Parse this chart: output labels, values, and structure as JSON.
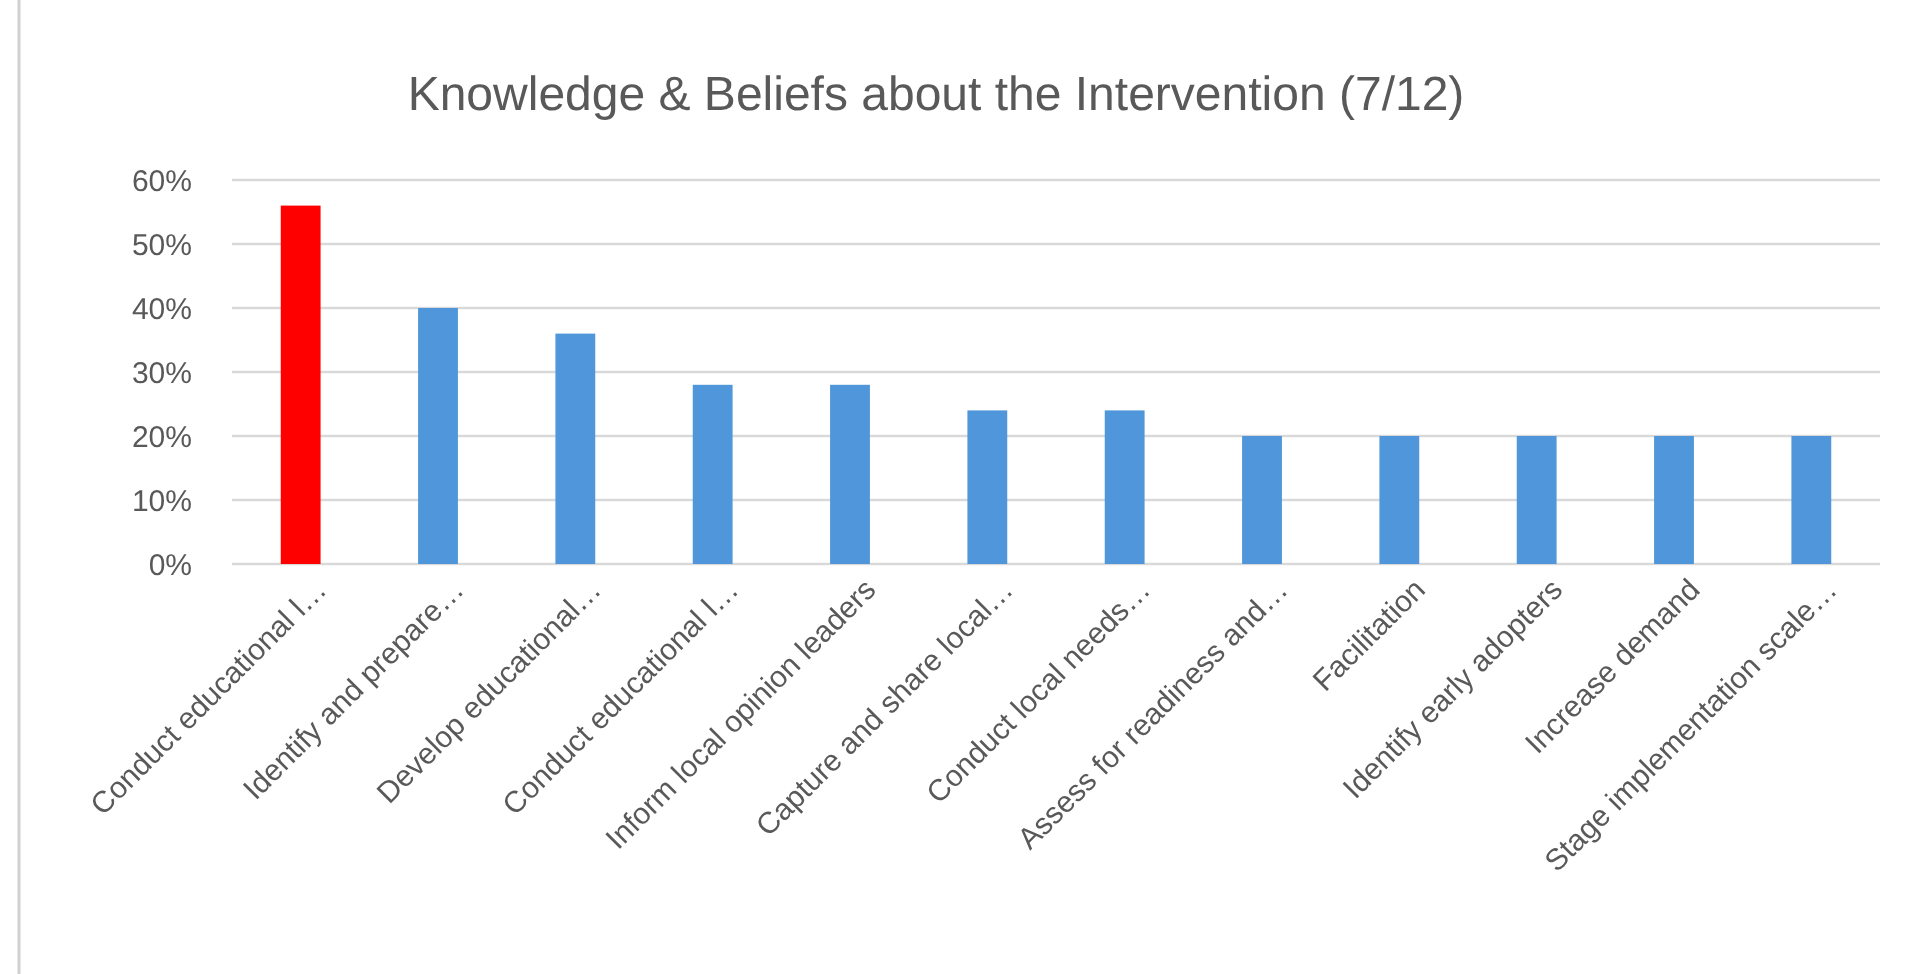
{
  "chart_data": {
    "type": "bar",
    "title": "Knowledge & Beliefs about the Intervention (7/12)",
    "categories": [
      "Conduct educational l…",
      "Identify and prepare…",
      "Develop educational…",
      "Conduct educational l…",
      "Inform local opinion leaders",
      "Capture and share local…",
      "Conduct local needs…",
      "Assess for readiness and…",
      "Facilitation",
      "Identify early adopters",
      "Increase demand",
      "Stage implementation scale…"
    ],
    "values": [
      56,
      40,
      36,
      28,
      28,
      24,
      24,
      20,
      20,
      20,
      20,
      20
    ],
    "colors": [
      "#ff0000",
      "#4f97da",
      "#4f97da",
      "#4f97da",
      "#4f97da",
      "#4f97da",
      "#4f97da",
      "#4f97da",
      "#4f97da",
      "#4f97da",
      "#4f97da",
      "#4f97da"
    ],
    "ylim": [
      0,
      60
    ],
    "yticks": [
      {
        "value": 0,
        "label": "0%"
      },
      {
        "value": 10,
        "label": "10%"
      },
      {
        "value": 20,
        "label": "20%"
      },
      {
        "value": 30,
        "label": "30%"
      },
      {
        "value": 40,
        "label": "40%"
      },
      {
        "value": 50,
        "label": "50%"
      },
      {
        "value": 60,
        "label": "60%"
      }
    ],
    "grid": "y"
  }
}
